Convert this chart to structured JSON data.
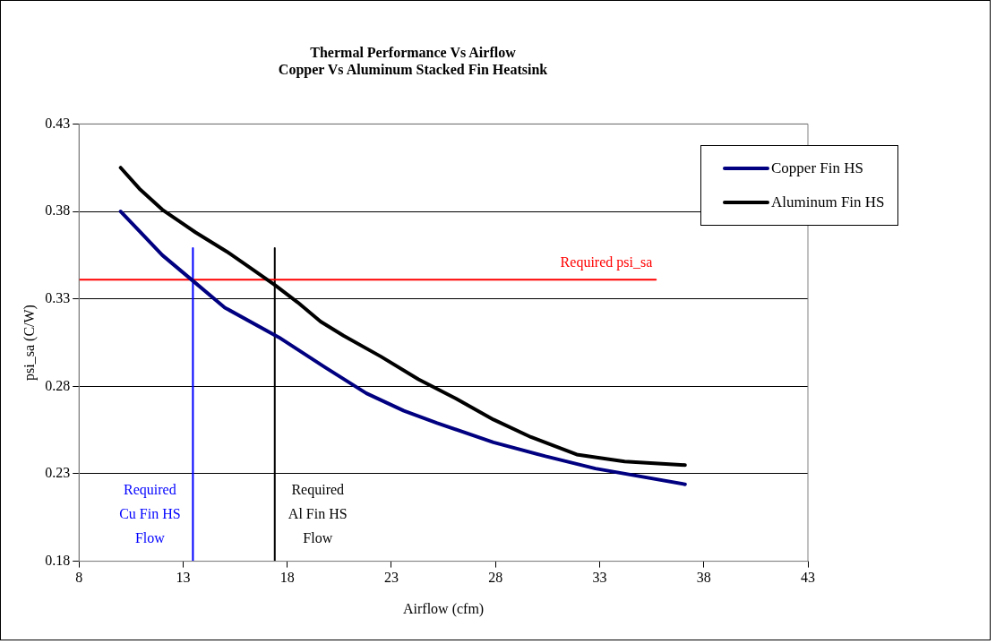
{
  "chart_data": {
    "type": "line",
    "title": "Thermal Performance Vs Airflow\nCopper Vs Aluminum Stacked Fin Heatsink",
    "xlabel": "Airflow (cfm)",
    "ylabel": "psi_sa (C/W)",
    "xlim": [
      8,
      43
    ],
    "xticks": [
      8,
      13,
      18,
      23,
      28,
      33,
      38,
      43
    ],
    "ylim": [
      0.18,
      0.43
    ],
    "yticks": [
      0.18,
      0.23,
      0.28,
      0.33,
      0.38,
      0.43
    ],
    "grid": "y",
    "legend": "top right",
    "marker": "none",
    "line_style": "solid",
    "series": [
      {
        "name": "Copper Fin HS",
        "color": "#000080",
        "x": [
          10,
          12,
          13.5,
          15,
          17.6,
          19.8,
          21.8,
          23.6,
          25.2,
          27.9,
          30.4,
          32.8,
          37.1
        ],
        "values": [
          0.38,
          0.355,
          0.34,
          0.325,
          0.308,
          0.291,
          0.276,
          0.266,
          0.259,
          0.248,
          0.24,
          0.233,
          0.224
        ]
      },
      {
        "name": "Aluminum Fin HS",
        "color": "#000000",
        "x": [
          10,
          10.9,
          12,
          13.6,
          15.1,
          16.2,
          17.4,
          18.5,
          19.6,
          20.7,
          22.5,
          24.3,
          26.1,
          27.9,
          29.7,
          31.9,
          34.2,
          37.1
        ],
        "values": [
          0.405,
          0.393,
          0.381,
          0.368,
          0.357,
          0.348,
          0.338,
          0.328,
          0.317,
          0.309,
          0.297,
          0.284,
          0.273,
          0.261,
          0.251,
          0.241,
          0.237,
          0.235
        ]
      },
      {
        "color": "#ff0000",
        "x": [
          8,
          35.7
        ],
        "values": [
          0.341,
          0.341
        ]
      },
      {
        "color": "#0000ff",
        "x": [
          13.47,
          13.47
        ],
        "values": [
          0.18,
          0.359
        ]
      },
      {
        "color": "#000000",
        "x": [
          17.4,
          17.4
        ],
        "values": [
          0.18,
          0.359
        ]
      }
    ],
    "annotations": [
      "Required psi_sa",
      "Required Cu Fin HS Flow",
      "Required Al Fin HS Flow"
    ]
  }
}
